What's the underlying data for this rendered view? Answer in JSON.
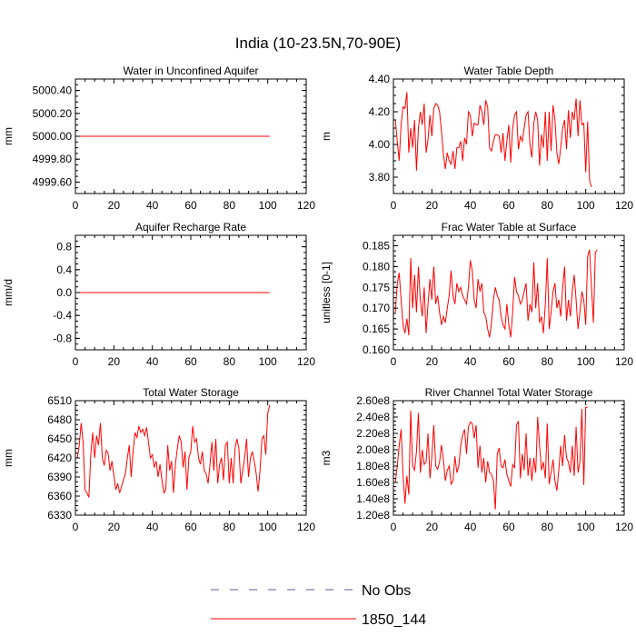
{
  "figure": {
    "title": "India (10-23.5N,70-90E)"
  },
  "legend": {
    "entries": [
      {
        "label": "No Obs",
        "style": "dashed",
        "color": "#5a5aa8"
      },
      {
        "label": "1850_144",
        "style": "solid",
        "color": "#ff0000"
      }
    ]
  },
  "chart_data": [
    {
      "type": "line",
      "title": "Water in Unconfined Aquifer",
      "xlabel": "",
      "ylabel": "mm",
      "xlim": [
        0,
        120
      ],
      "ylim": [
        4999.5,
        5000.5
      ],
      "xticks": [
        0,
        20,
        40,
        60,
        80,
        100,
        120
      ],
      "yticks": [
        4999.6,
        4999.8,
        5000.0,
        5000.2,
        5000.4
      ],
      "ytick_labels": [
        "4999.60",
        "4999.80",
        "5000.00",
        "5000.20",
        "5000.40"
      ],
      "series": [
        {
          "name": "1850_144",
          "color": "#ff0000",
          "x_start": 1,
          "values": [
            5000,
            5000,
            5000,
            5000,
            5000,
            5000,
            5000,
            5000,
            5000,
            5000,
            5000,
            5000,
            5000,
            5000,
            5000,
            5000,
            5000,
            5000,
            5000,
            5000,
            5000,
            5000,
            5000,
            5000,
            5000,
            5000,
            5000,
            5000,
            5000,
            5000,
            5000,
            5000,
            5000,
            5000,
            5000,
            5000,
            5000,
            5000,
            5000,
            5000,
            5000,
            5000,
            5000,
            5000,
            5000,
            5000,
            5000,
            5000,
            5000,
            5000,
            5000,
            5000,
            5000,
            5000,
            5000,
            5000,
            5000,
            5000,
            5000,
            5000,
            5000,
            5000,
            5000,
            5000,
            5000,
            5000,
            5000,
            5000,
            5000,
            5000,
            5000,
            5000,
            5000,
            5000,
            5000,
            5000,
            5000,
            5000,
            5000,
            5000,
            5000,
            5000,
            5000,
            5000,
            5000,
            5000,
            5000,
            5000,
            5000,
            5000,
            5000,
            5000,
            5000,
            5000,
            5000,
            5000,
            5000,
            5000,
            5000,
            5000,
            5000
          ]
        }
      ]
    },
    {
      "type": "line",
      "title": "Water Table Depth",
      "xlabel": "",
      "ylabel": "m",
      "xlim": [
        0,
        120
      ],
      "ylim": [
        3.7,
        4.4
      ],
      "xticks": [
        0,
        20,
        40,
        60,
        80,
        100,
        120
      ],
      "yticks": [
        3.8,
        4.0,
        4.2,
        4.4
      ],
      "ytick_labels": [
        "3.80",
        "4.00",
        "4.20",
        "4.40"
      ],
      "series": [
        {
          "name": "1850_144",
          "color": "#ff0000",
          "x_start": 1,
          "values": [
            4.15,
            4.02,
            3.9,
            4.12,
            4.23,
            4.22,
            4.32,
            3.95,
            4.1,
            3.98,
            4.15,
            3.84,
            4.1,
            4.2,
            4.12,
            4.25,
            3.95,
            4.03,
            4.18,
            4.05,
            4.22,
            4.25,
            4.24,
            4.2,
            4.08,
            3.94,
            3.85,
            3.95,
            3.9,
            3.88,
            3.96,
            3.85,
            3.98,
            3.98,
            4.02,
            3.9,
            4.04,
            4.0,
            4.2,
            4.18,
            4.05,
            4.13,
            4.12,
            4.12,
            4.24,
            4.2,
            4.12,
            4.27,
            4.23,
            3.98,
            3.96,
            4.02,
            4.06,
            4.06,
            4.05,
            3.95,
            4.07,
            3.9,
            4.02,
            4.12,
            3.89,
            4.1,
            4.18,
            4.2,
            3.97,
            4.05,
            4.02,
            4.1,
            4.18,
            4.2,
            4.0,
            3.92,
            4.13,
            4.2,
            4.15,
            3.87,
            4.06,
            3.98,
            4.2,
            3.9,
            4.2,
            3.96,
            4.24,
            4.15,
            3.95,
            3.88,
            3.98,
            4.1,
            4.15,
            3.97,
            4.21,
            4.04,
            4.2,
            4.15,
            4.28,
            4.05,
            4.27,
            4.12,
            4.13,
            3.83,
            4.14,
            3.78,
            3.74
          ]
        }
      ]
    },
    {
      "type": "line",
      "title": "Aquifer Recharge Rate",
      "xlabel": "",
      "ylabel": "mm/d",
      "xlim": [
        0,
        120
      ],
      "ylim": [
        -1,
        1
      ],
      "xticks": [
        0,
        20,
        40,
        60,
        80,
        100,
        120
      ],
      "yticks": [
        -0.8,
        -0.4,
        0.0,
        0.4,
        0.8
      ],
      "ytick_labels": [
        "-0.8",
        "-0.4",
        "0.0",
        "0.4",
        "0.8"
      ],
      "series": [
        {
          "name": "1850_144",
          "color": "#ff0000",
          "x_start": 1,
          "values": [
            0,
            0,
            0,
            0,
            0,
            0,
            0,
            0,
            0,
            0,
            0,
            0,
            0,
            0,
            0,
            0,
            0,
            0,
            0,
            0,
            0,
            0,
            0,
            0,
            0,
            0,
            0,
            0,
            0,
            0,
            0,
            0,
            0,
            0,
            0,
            0,
            0,
            0,
            0,
            0,
            0,
            0,
            0,
            0,
            0,
            0,
            0,
            0,
            0,
            0,
            0,
            0,
            0,
            0,
            0,
            0,
            0,
            0,
            0,
            0,
            0,
            0,
            0,
            0,
            0,
            0,
            0,
            0,
            0,
            0,
            0,
            0,
            0,
            0,
            0,
            0,
            0,
            0,
            0,
            0,
            0,
            0,
            0,
            0,
            0,
            0,
            0,
            0,
            0,
            0,
            0,
            0,
            0,
            0,
            0,
            0,
            0,
            0,
            0,
            0,
            0
          ]
        }
      ]
    },
    {
      "type": "line",
      "title": "Frac Water Table at Surface",
      "xlabel": "",
      "ylabel": "unitless [0-1]",
      "xlim": [
        0,
        120
      ],
      "ylim": [
        0.16,
        0.1875
      ],
      "xticks": [
        0,
        20,
        40,
        60,
        80,
        100,
        120
      ],
      "yticks": [
        0.16,
        0.165,
        0.17,
        0.175,
        0.18,
        0.185
      ],
      "ytick_labels": [
        "0.160",
        "0.165",
        "0.170",
        "0.175",
        "0.180",
        "0.185"
      ],
      "series": [
        {
          "name": "1850_144",
          "color": "#ff0000",
          "x_start": 1,
          "values": [
            0.169,
            0.176,
            0.1785,
            0.172,
            0.166,
            0.164,
            0.1675,
            0.1635,
            0.182,
            0.17,
            0.178,
            0.169,
            0.18,
            0.172,
            0.168,
            0.175,
            0.164,
            0.171,
            0.177,
            0.172,
            0.18,
            0.171,
            0.173,
            0.169,
            0.166,
            0.168,
            0.1665,
            0.17,
            0.173,
            0.179,
            0.173,
            0.171,
            0.176,
            0.174,
            0.175,
            0.173,
            0.172,
            0.171,
            0.175,
            0.1815,
            0.179,
            0.172,
            0.17,
            0.177,
            0.174,
            0.176,
            0.169,
            0.168,
            0.165,
            0.163,
            0.1665,
            0.172,
            0.175,
            0.173,
            0.172,
            0.168,
            0.166,
            0.165,
            0.171,
            0.166,
            0.163,
            0.169,
            0.1775,
            0.174,
            0.173,
            0.171,
            0.172,
            0.174,
            0.176,
            0.167,
            0.171,
            0.169,
            0.181,
            0.17,
            0.176,
            0.1665,
            0.168,
            0.164,
            0.171,
            0.182,
            0.165,
            0.169,
            0.174,
            0.176,
            0.17,
            0.172,
            0.168,
            0.175,
            0.18,
            0.167,
            0.172,
            0.168,
            0.174,
            0.178,
            0.172,
            0.165,
            0.169,
            0.174,
            0.172,
            0.166,
            0.1825,
            0.184,
            0.175,
            0.1665,
            0.1835,
            0.184
          ]
        }
      ]
    },
    {
      "type": "line",
      "title": "Total Water Storage",
      "xlabel": "",
      "ylabel": "mm",
      "xlim": [
        0,
        120
      ],
      "ylim": [
        6330,
        6510
      ],
      "xticks": [
        0,
        20,
        40,
        60,
        80,
        100,
        120
      ],
      "yticks": [
        6330,
        6360,
        6390,
        6420,
        6450,
        6480,
        6510
      ],
      "ytick_labels": [
        "6330",
        "6360",
        "6390",
        "6420",
        "6450",
        "6480",
        "6510"
      ],
      "series": [
        {
          "name": "1850_144",
          "color": "#ff0000",
          "x_start": 1,
          "values": [
            6420,
            6440,
            6475,
            6445,
            6370,
            6365,
            6358,
            6425,
            6460,
            6420,
            6455,
            6440,
            6475,
            6420,
            6408,
            6432,
            6428,
            6400,
            6415,
            6393,
            6370,
            6380,
            6365,
            6375,
            6386,
            6395,
            6420,
            6440,
            6390,
            6430,
            6460,
            6452,
            6470,
            6460,
            6465,
            6455,
            6468,
            6445,
            6420,
            6425,
            6405,
            6415,
            6390,
            6410,
            6385,
            6365,
            6370,
            6440,
            6400,
            6415,
            6365,
            6410,
            6435,
            6455,
            6445,
            6405,
            6430,
            6370,
            6420,
            6430,
            6470,
            6445,
            6450,
            6420,
            6410,
            6430,
            6400,
            6395,
            6380,
            6410,
            6445,
            6400,
            6450,
            6380,
            6410,
            6420,
            6385,
            6440,
            6445,
            6380,
            6420,
            6380,
            6435,
            6450,
            6435,
            6380,
            6400,
            6420,
            6450,
            6390,
            6420,
            6430,
            6415,
            6395,
            6367,
            6400,
            6450,
            6455,
            6425,
            6490,
            6503
          ]
        }
      ]
    },
    {
      "type": "line",
      "title": "River Channel Total Water Storage",
      "xlabel": "",
      "ylabel": "m3",
      "xlim": [
        0,
        120
      ],
      "ylim": [
        120000000.0,
        260000000.0
      ],
      "xticks": [
        0,
        20,
        40,
        60,
        80,
        100,
        120
      ],
      "yticks": [
        120000000.0,
        140000000.0,
        160000000.0,
        180000000.0,
        200000000.0,
        220000000.0,
        240000000.0,
        260000000.0
      ],
      "ytick_labels": [
        "1.20e8",
        "1.40e8",
        "1.60e8",
        "1.80e8",
        "2.00e8",
        "2.20e8",
        "2.40e8",
        "2.60e8"
      ],
      "series": [
        {
          "name": "1850_144",
          "color": "#ff0000",
          "x_start": 1,
          "values": [
            160000000.0,
            180000000.0,
            205000000.0,
            225000000.0,
            170000000.0,
            134000000.0,
            168000000.0,
            145000000.0,
            248000000.0,
            180000000.0,
            175000000.0,
            198000000.0,
            245000000.0,
            172000000.0,
            200000000.0,
            182000000.0,
            185000000.0,
            220000000.0,
            165000000.0,
            192000000.0,
            230000000.0,
            180000000.0,
            176000000.0,
            185000000.0,
            206000000.0,
            188000000.0,
            162000000.0,
            175000000.0,
            180000000.0,
            158000000.0,
            162000000.0,
            192000000.0,
            172000000.0,
            180000000.0,
            205000000.0,
            218000000.0,
            225000000.0,
            195000000.0,
            228000000.0,
            234000000.0,
            232000000.0,
            214000000.0,
            230000000.0,
            178000000.0,
            205000000.0,
            172000000.0,
            190000000.0,
            160000000.0,
            186000000.0,
            172000000.0,
            170000000.0,
            162000000.0,
            127000000.0,
            195000000.0,
            202000000.0,
            180000000.0,
            178000000.0,
            188000000.0,
            170000000.0,
            162000000.0,
            155000000.0,
            182000000.0,
            178000000.0,
            230000000.0,
            235000000.0,
            165000000.0,
            195000000.0,
            175000000.0,
            220000000.0,
            168000000.0,
            190000000.0,
            162000000.0,
            190000000.0,
            172000000.0,
            240000000.0,
            205000000.0,
            175000000.0,
            185000000.0,
            165000000.0,
            232000000.0,
            158000000.0,
            172000000.0,
            188000000.0,
            162000000.0,
            150000000.0,
            175000000.0,
            205000000.0,
            180000000.0,
            218000000.0,
            190000000.0,
            185000000.0,
            172000000.0,
            205000000.0,
            168000000.0,
            228000000.0,
            172000000.0,
            185000000.0,
            250000000.0,
            157000000.0,
            252000000.0,
            252000000.0
          ]
        }
      ]
    }
  ]
}
